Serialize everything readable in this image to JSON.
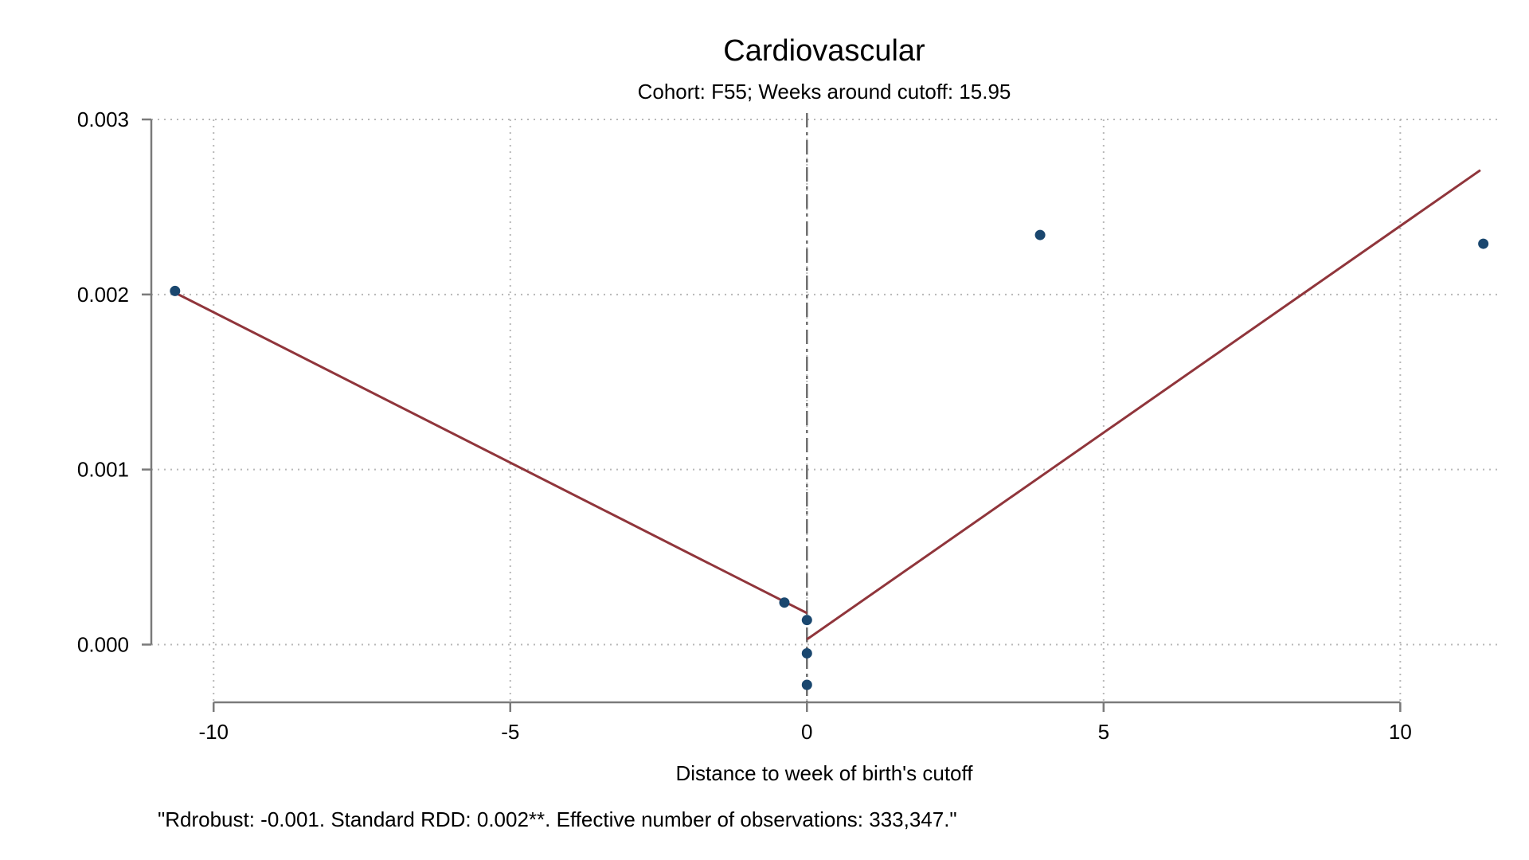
{
  "chart_data": {
    "type": "scatter",
    "title": "Cardiovascular",
    "subtitle": "Cohort: F55; Weeks around cutoff:   15.95",
    "xlabel": "Distance to week of birth's cutoff",
    "ylabel": "",
    "note": "\"Rdrobust: -0.001. Standard RDD: 0.002**. Effective number of observations: 333,347.\"",
    "xlim": [
      -11.05,
      11.7
    ],
    "ylim": [
      -0.00033,
      0.003
    ],
    "x_ticks": [
      -10,
      -5,
      0,
      5,
      10
    ],
    "x_tick_labels": [
      "-10",
      "-5",
      "0",
      "5",
      "10"
    ],
    "y_ticks": [
      0,
      0.001,
      0.002,
      0.003
    ],
    "y_tick_labels": [
      "0.000",
      "0.001",
      "0.002",
      "0.003"
    ],
    "grid": true,
    "cutoff_x": 0,
    "points": [
      {
        "x": -10.65,
        "y": 0.00202
      },
      {
        "x": -0.38,
        "y": 0.00024
      },
      {
        "x": 0.0,
        "y": 0.00014
      },
      {
        "x": 0.0,
        "y": -5e-05
      },
      {
        "x": 0.0,
        "y": -0.00023
      },
      {
        "x": 3.93,
        "y": 0.00234
      },
      {
        "x": 11.4,
        "y": 0.00229
      }
    ],
    "fit_lines": [
      {
        "x": [
          -10.65,
          0.0
        ],
        "y": [
          0.00201,
          0.00018
        ]
      },
      {
        "x": [
          0.0,
          11.35
        ],
        "y": [
          3e-05,
          0.00271
        ]
      }
    ],
    "colors": {
      "points": "#1a476f",
      "fit": "#90353b",
      "grid": "#b8b8b8",
      "axis": "#7a7a7a",
      "cutoff": "#6e6e6e"
    }
  }
}
